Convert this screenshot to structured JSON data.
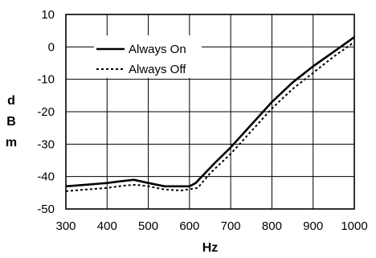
{
  "chart_data": {
    "type": "line",
    "title": "",
    "xlabel": "Hz",
    "ylabel_letters": [
      "d",
      "B",
      "m"
    ],
    "xlim": [
      300,
      1000
    ],
    "ylim": [
      -50,
      10
    ],
    "xticks": [
      300,
      400,
      500,
      600,
      700,
      800,
      900,
      1000
    ],
    "yticks": [
      10,
      0,
      -10,
      -20,
      -30,
      -40,
      -50
    ],
    "grid": true,
    "legend_position": "upper-left inside",
    "series": [
      {
        "name": "Always On",
        "style": "solid",
        "x": [
          300,
          350,
          400,
          430,
          465,
          500,
          540,
          580,
          600,
          615,
          630,
          660,
          700,
          750,
          800,
          850,
          900,
          950,
          1000
        ],
        "y": [
          -43,
          -42.5,
          -42,
          -41.5,
          -41,
          -42,
          -43,
          -43,
          -43,
          -42,
          -40,
          -36,
          -31,
          -24,
          -17,
          -11,
          -6,
          -1.5,
          3
        ]
      },
      {
        "name": "Always Off",
        "style": "dotted",
        "x": [
          300,
          350,
          400,
          440,
          470,
          500,
          540,
          580,
          620,
          650,
          700,
          750,
          800,
          850,
          900,
          950,
          1000
        ],
        "y": [
          -44.5,
          -44,
          -43.5,
          -42.8,
          -42.5,
          -43,
          -44,
          -44.3,
          -43.5,
          -39,
          -33,
          -26,
          -19,
          -13,
          -8,
          -3,
          1.5
        ]
      }
    ]
  }
}
